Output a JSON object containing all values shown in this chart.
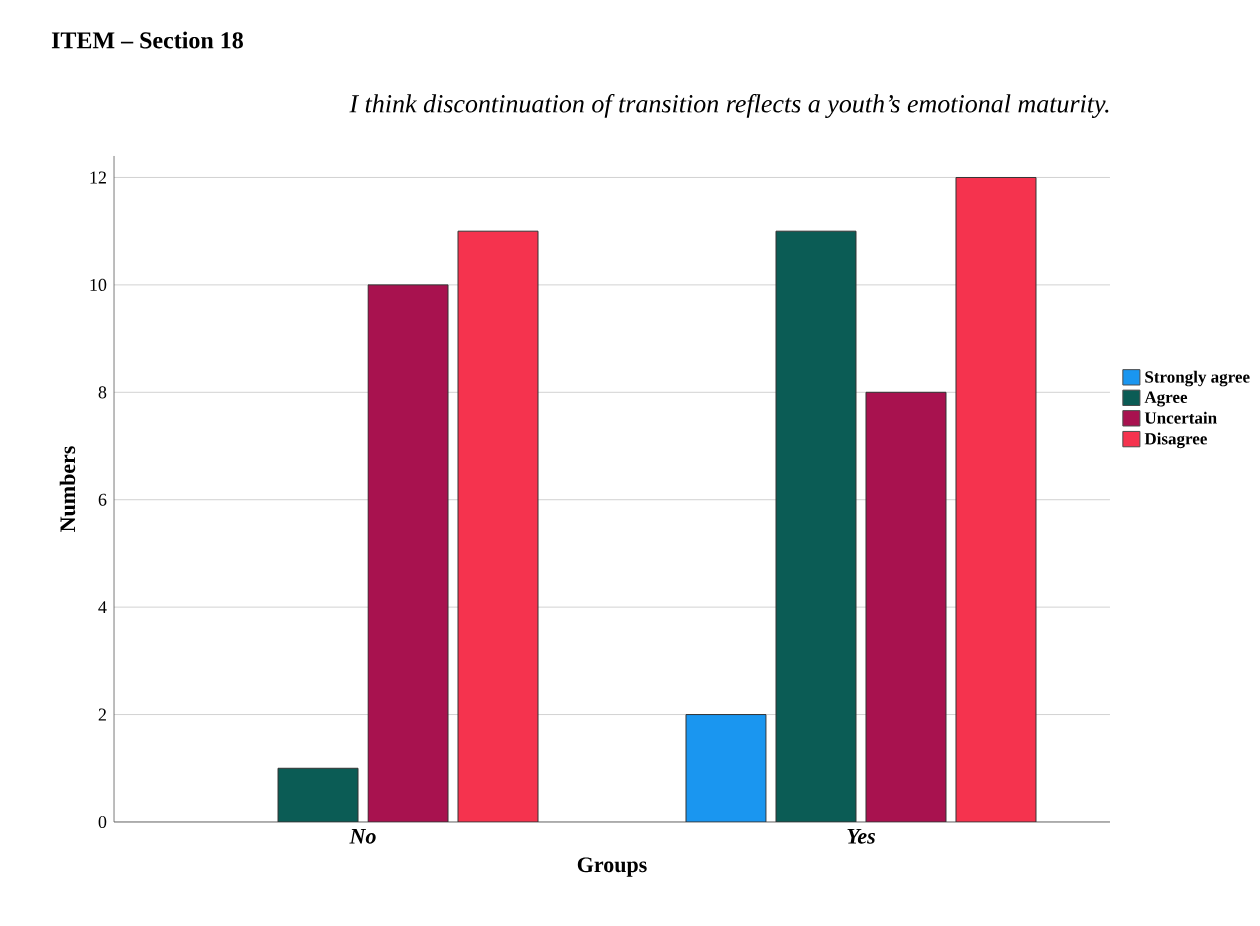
{
  "chart_data": {
    "type": "bar",
    "title": "ITEM – Section 18",
    "subtitle": "I think discontinuation of transition reflects a youth’s emotional maturity.",
    "xlabel": "Groups",
    "ylabel": "Numbers",
    "categories": [
      "No",
      "Yes"
    ],
    "series": [
      {
        "name": "Strongly agree",
        "color": "#1a96f0",
        "values": [
          null,
          2
        ]
      },
      {
        "name": "Agree",
        "color": "#0b5c55",
        "values": [
          1,
          11
        ]
      },
      {
        "name": "Uncertain",
        "color": "#a8124f",
        "values": [
          10,
          8
        ]
      },
      {
        "name": "Disagree",
        "color": "#f5334e",
        "values": [
          11,
          12
        ]
      }
    ],
    "ylim": [
      0,
      12.4
    ],
    "yticks": [
      0,
      2,
      4,
      6,
      8,
      10,
      12
    ],
    "grid": "y",
    "legend": "right"
  }
}
